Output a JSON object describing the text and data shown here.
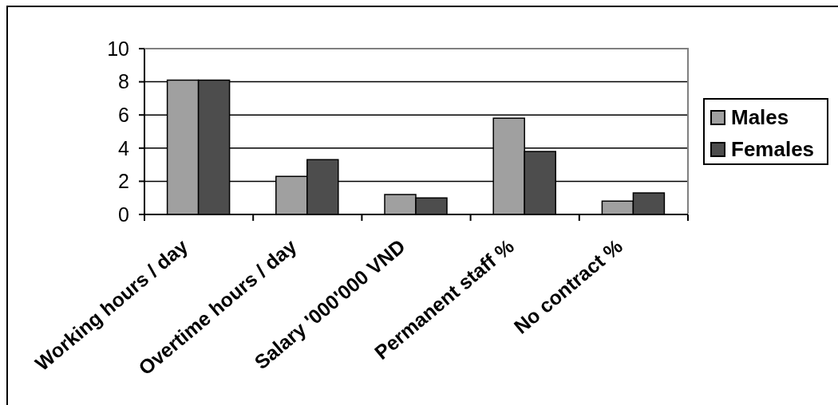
{
  "chart_data": {
    "type": "bar",
    "categories": [
      "Working hours / day",
      "Overtime hours / day",
      "Salary '000'000 VND",
      "Permanent staff %",
      "No contract %"
    ],
    "series": [
      {
        "name": "Males",
        "color": "#a0a0a0",
        "values": [
          8.1,
          2.3,
          1.2,
          5.8,
          0.8
        ]
      },
      {
        "name": "Females",
        "color": "#4d4d4d",
        "values": [
          8.1,
          3.3,
          1.0,
          3.8,
          1.3
        ]
      }
    ],
    "ylim": [
      0,
      10
    ],
    "yticks": [
      0,
      2,
      4,
      6,
      8,
      10
    ],
    "grid": "y",
    "legend": "right"
  }
}
